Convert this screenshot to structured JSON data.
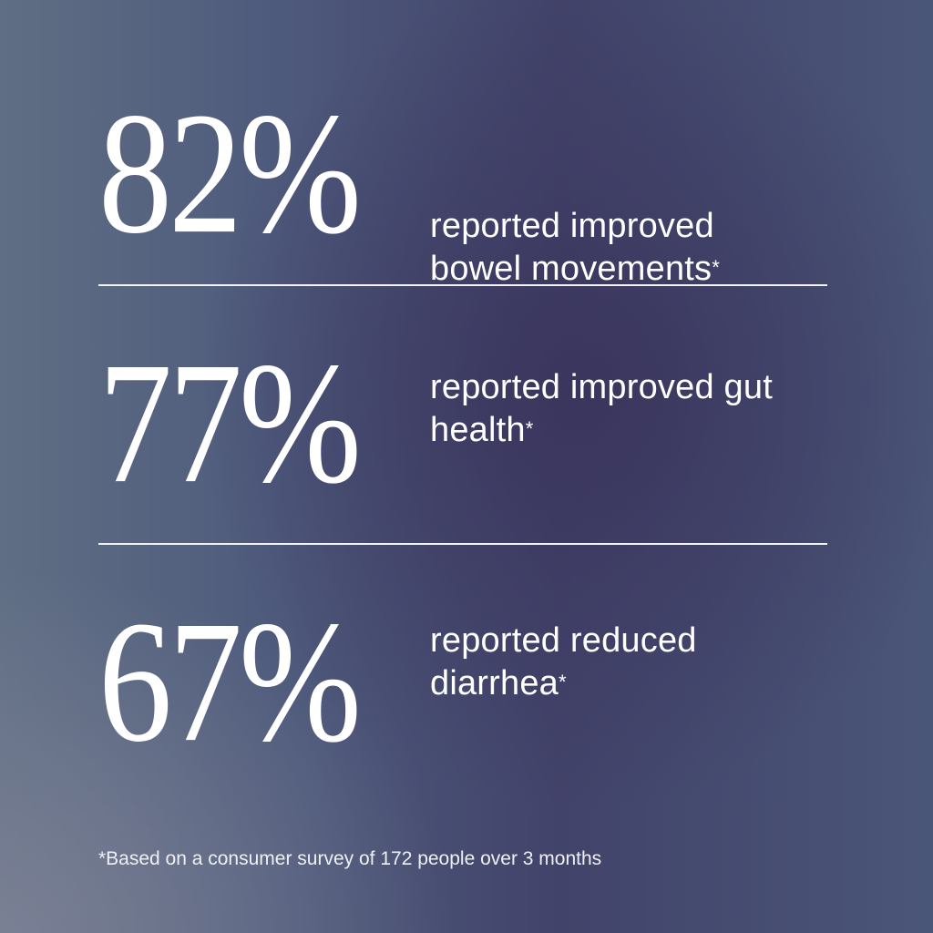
{
  "background": {
    "colors": [
      "#5f6e84",
      "#42436a",
      "#4a5678"
    ]
  },
  "stats": [
    {
      "value": "82%",
      "line1": "reported improved",
      "line2": "bowel movements",
      "mark": "*"
    },
    {
      "value": "77%",
      "line1": "reported improved gut",
      "line2": "health",
      "mark": "*"
    },
    {
      "value": "67%",
      "line1": "reported reduced",
      "line2": "diarrhea",
      "mark": "*"
    }
  ],
  "footnote": "*Based on a consumer survey of 172 people over 3 months"
}
